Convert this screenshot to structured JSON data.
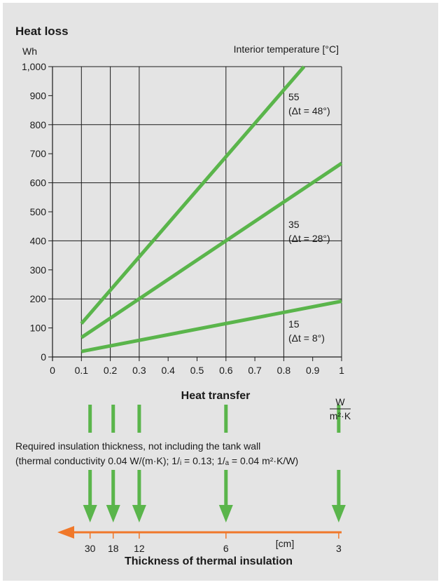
{
  "colors": {
    "background": "#e4e4e4",
    "series": "#5ab54b",
    "arrow_down": "#5ab54b",
    "thickness_axis": "#f0782a",
    "grid": "#1a1a1a"
  },
  "chart_data": {
    "type": "line",
    "title": "Heat loss",
    "ylabel": "Wh",
    "xlabel": "Heat transfer",
    "x_unit": {
      "numerator": "W",
      "denominator": "m²·K"
    },
    "legend_title": "Interior temperature [°C]",
    "xlim": [
      0,
      1
    ],
    "ylim": [
      0,
      1000
    ],
    "x_ticks": [
      0,
      0.1,
      0.2,
      0.3,
      0.4,
      0.5,
      0.6,
      0.7,
      0.8,
      0.9,
      1
    ],
    "x_tick_labels": [
      "0",
      "0.1",
      "0.2",
      "0.3",
      "0.4",
      "0.5",
      "0.6",
      "0.7",
      "0.8",
      "0.9",
      "1"
    ],
    "y_ticks": [
      0,
      100,
      200,
      300,
      400,
      500,
      600,
      700,
      800,
      900,
      1000
    ],
    "y_tick_labels": [
      "0",
      "100",
      "200",
      "300",
      "400",
      "500",
      "600",
      "700",
      "800",
      "900",
      "1,000"
    ],
    "grid_x": [
      0.1,
      0.2,
      0.3,
      0.6,
      0.8,
      1
    ],
    "grid_y": [
      200,
      400,
      600,
      800,
      1000
    ],
    "series": [
      {
        "name": "55",
        "note": "(Δt = 48°)",
        "x": [
          0.1,
          0.87
        ],
        "y": [
          115,
          1000
        ]
      },
      {
        "name": "35",
        "note": "(Δt = 28°)",
        "x": [
          0.1,
          1.0
        ],
        "y": [
          67,
          667
        ]
      },
      {
        "name": "15",
        "note": "(Δt = 8°)",
        "x": [
          0.1,
          1.0
        ],
        "y": [
          19,
          192
        ]
      }
    ],
    "insulation_note_line1": "Required insulation thickness, not including the tank wall",
    "insulation_note_line2": "(thermal conductivity 0.04 W/(m·K); 1/ᵢ = 0.13; 1/ₐ = 0.04 m²·K/W)",
    "arrow_x": [
      0.13,
      0.21,
      0.3,
      0.6,
      0.99
    ],
    "thickness_axis_title": "Thickness of thermal insulation",
    "thickness_labels": [
      "30",
      "18",
      "12",
      "6",
      "3"
    ],
    "thickness_unit": "[cm]"
  }
}
